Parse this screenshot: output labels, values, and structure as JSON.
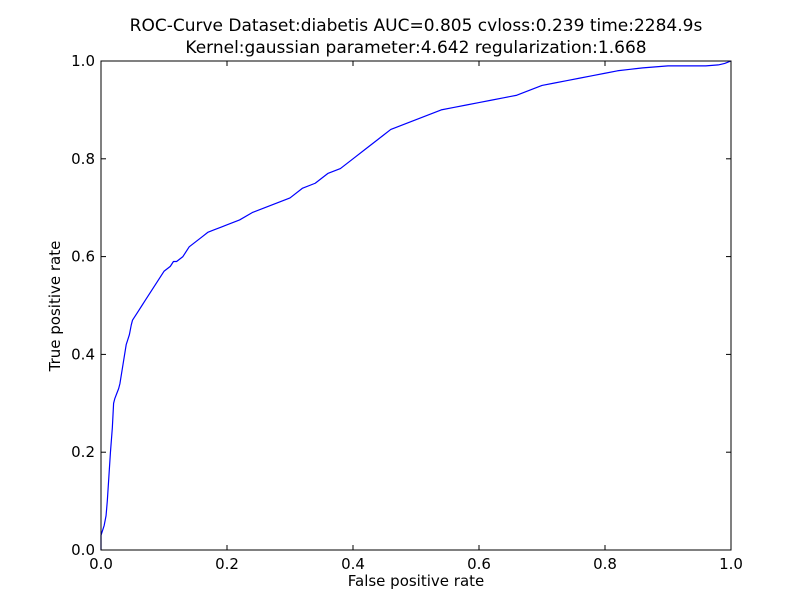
{
  "chart_data": {
    "type": "line",
    "title_lines": [
      "ROC-Curve Dataset:diabetis AUC=0.805 cvloss:0.239 time:2284.9s",
      "Kernel:gaussian parameter:4.642 regularization:1.668"
    ],
    "xlabel": "False positive rate",
    "ylabel": "True positive rate",
    "xlim": [
      0.0,
      1.0
    ],
    "ylim": [
      0.0,
      1.0
    ],
    "xticks": [
      0.0,
      0.2,
      0.4,
      0.6,
      0.8,
      1.0
    ],
    "yticks": [
      0.0,
      0.2,
      0.4,
      0.6,
      0.8,
      1.0
    ],
    "xtick_labels": [
      "0.0",
      "0.2",
      "0.4",
      "0.6",
      "0.8",
      "1.0"
    ],
    "ytick_labels": [
      "0.0",
      "0.2",
      "0.4",
      "0.6",
      "0.8",
      "1.0"
    ],
    "grid": false,
    "legend": "none",
    "series": [
      {
        "color": "#0000ff",
        "x": [
          0.0,
          0.0,
          0.005,
          0.008,
          0.01,
          0.012,
          0.015,
          0.018,
          0.02,
          0.022,
          0.025,
          0.028,
          0.03,
          0.035,
          0.04,
          0.045,
          0.048,
          0.05,
          0.055,
          0.06,
          0.065,
          0.07,
          0.08,
          0.09,
          0.1,
          0.11,
          0.115,
          0.12,
          0.13,
          0.14,
          0.15,
          0.16,
          0.17,
          0.18,
          0.19,
          0.2,
          0.22,
          0.24,
          0.26,
          0.28,
          0.3,
          0.32,
          0.34,
          0.36,
          0.38,
          0.4,
          0.42,
          0.44,
          0.46,
          0.48,
          0.5,
          0.52,
          0.54,
          0.56,
          0.58,
          0.6,
          0.62,
          0.64,
          0.66,
          0.68,
          0.7,
          0.72,
          0.74,
          0.76,
          0.78,
          0.8,
          0.82,
          0.84,
          0.86,
          0.88,
          0.9,
          0.92,
          0.94,
          0.96,
          0.98,
          0.99,
          1.0
        ],
        "y": [
          0.0,
          0.03,
          0.05,
          0.07,
          0.1,
          0.14,
          0.2,
          0.25,
          0.3,
          0.31,
          0.32,
          0.33,
          0.34,
          0.38,
          0.42,
          0.44,
          0.46,
          0.47,
          0.48,
          0.49,
          0.5,
          0.51,
          0.53,
          0.55,
          0.57,
          0.58,
          0.59,
          0.59,
          0.6,
          0.62,
          0.63,
          0.64,
          0.65,
          0.655,
          0.66,
          0.665,
          0.675,
          0.69,
          0.7,
          0.71,
          0.72,
          0.74,
          0.75,
          0.77,
          0.78,
          0.8,
          0.82,
          0.84,
          0.86,
          0.87,
          0.88,
          0.89,
          0.9,
          0.905,
          0.91,
          0.915,
          0.92,
          0.925,
          0.93,
          0.94,
          0.95,
          0.955,
          0.96,
          0.965,
          0.97,
          0.975,
          0.98,
          0.983,
          0.986,
          0.988,
          0.99,
          0.99,
          0.99,
          0.99,
          0.992,
          0.995,
          1.0
        ]
      }
    ]
  }
}
